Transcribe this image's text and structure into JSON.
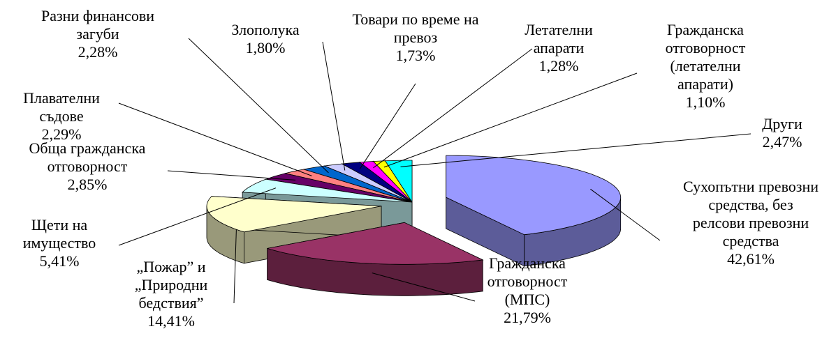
{
  "chart_data": {
    "type": "pie",
    "categories": [
      "Сухопътни превозни средства, без релсови превозни средства",
      "Гражданска отговорност (МПС)",
      "„Пожар” и „Природни бедствия”",
      "Щети на имущество",
      "Обща гражданска отговорност",
      "Плавателни съдове",
      "Разни финансови загуби",
      "Злополука",
      "Товари по време на превоз",
      "Летателни апарати",
      "Гражданска отговорност (летателни апарати)",
      "Други"
    ],
    "values": [
      42.61,
      21.79,
      14.41,
      5.41,
      2.85,
      2.29,
      2.28,
      1.8,
      1.73,
      1.28,
      1.1,
      2.47
    ],
    "value_labels": [
      "42,61%",
      "21,79%",
      "14,41%",
      "5,41%",
      "2,85%",
      "2,29%",
      "2,28%",
      "1,80%",
      "1,73%",
      "1,28%",
      "1,10%",
      "2,47%"
    ],
    "colors": [
      "#9999ff",
      "#993366",
      "#ffffcc",
      "#ccffff",
      "#660066",
      "#ff8080",
      "#0066cc",
      "#ccccff",
      "#000080",
      "#ff00ff",
      "#ffff00",
      "#00ffff"
    ]
  }
}
